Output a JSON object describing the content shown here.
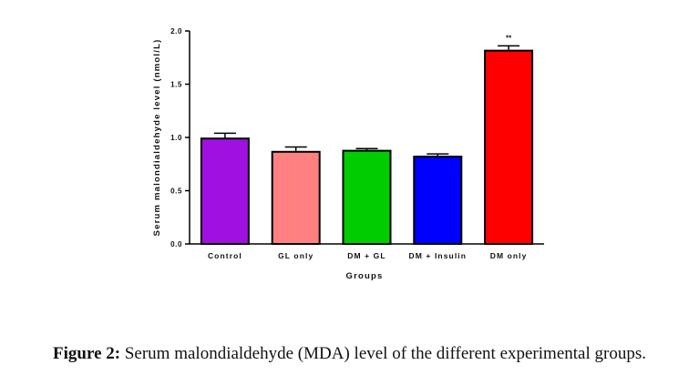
{
  "chart_data": {
    "type": "bar",
    "categories": [
      "Control",
      "GL only",
      "DM + GL",
      "DM + Insulin",
      "DM only"
    ],
    "values": [
      0.99,
      0.865,
      0.875,
      0.82,
      1.815
    ],
    "errors": [
      0.05,
      0.045,
      0.02,
      0.025,
      0.045
    ],
    "colors": [
      "#a010e0",
      "#ff8080",
      "#00cc00",
      "#0000ff",
      "#ff0000"
    ],
    "annotations": [
      "",
      "",
      "",
      "",
      "**"
    ],
    "xlabel": "Groups",
    "ylabel": "Serum malondialdehyde level (nmol/L)",
    "ylim": [
      0,
      2.0
    ],
    "yticks": [
      "0.0",
      "0.5",
      "1.0",
      "1.5",
      "2.0"
    ],
    "grid": false
  },
  "caption": {
    "label": "Figure 2:",
    "text": " Serum malondialdehyde (MDA) level of the different experimental groups."
  }
}
